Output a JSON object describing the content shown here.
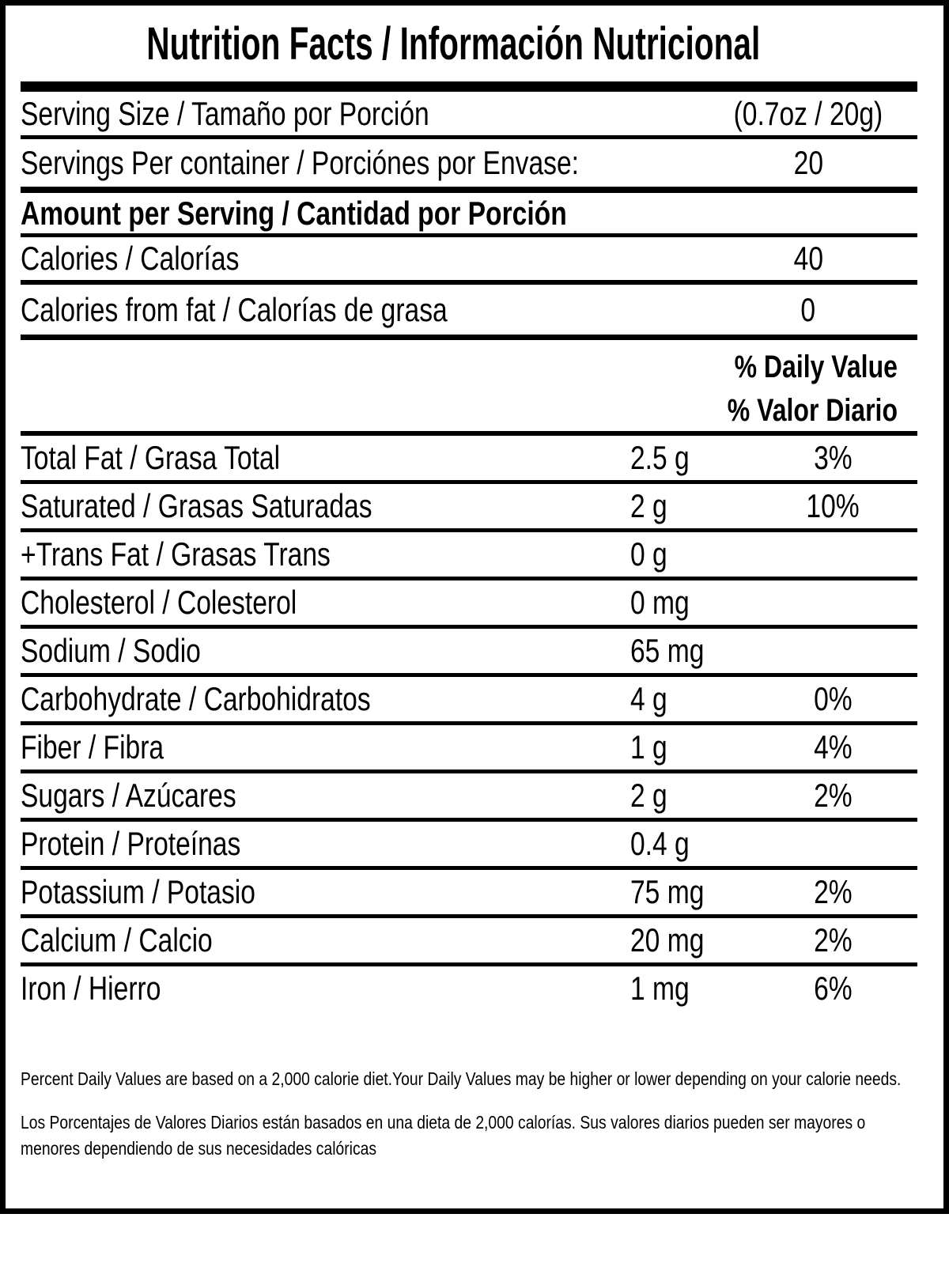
{
  "label": {
    "title": "Nutrition Facts / Información Nutricional",
    "serving_rows": [
      {
        "label": "Serving Size / Tamaño por Porción",
        "value": "(0.7oz / 20g)"
      },
      {
        "label": "Servings Per container / Porciónes por Envase:",
        "value": "20"
      }
    ],
    "amount_heading": "Amount per Serving / Cantidad por Porción",
    "calorie_rows": [
      {
        "label": "Calories / Calorías",
        "value": "40"
      },
      {
        "label": "Calories from fat / Calorías de grasa",
        "value": "0"
      }
    ],
    "daily_value_header": {
      "line1": "% Daily Value",
      "line2": "% Valor Diario"
    },
    "nutrient_rows": [
      {
        "label": "Total Fat / Grasa Total",
        "amount": "2.5 g",
        "daily_value": "3%"
      },
      {
        "label": "Saturated / Grasas Saturadas",
        "amount": "2 g",
        "daily_value": "10%"
      },
      {
        "label": "+Trans Fat / Grasas Trans",
        "amount": "0 g",
        "daily_value": ""
      },
      {
        "label": "Cholesterol / Colesterol",
        "amount": "0 mg",
        "daily_value": ""
      },
      {
        "label": "Sodium / Sodio",
        "amount": "65 mg",
        "daily_value": ""
      },
      {
        "label": "Carbohydrate / Carbohidratos",
        "amount": "4 g",
        "daily_value": "0%"
      },
      {
        "label": "Fiber / Fibra",
        "amount": "1 g",
        "daily_value": "4%"
      },
      {
        "label": "Sugars / Azúcares",
        "amount": "2 g",
        "daily_value": "2%"
      },
      {
        "label": "Protein / Proteínas",
        "amount": "0.4 g",
        "daily_value": ""
      },
      {
        "label": "Potassium / Potasio",
        "amount": "75 mg",
        "daily_value": "2%"
      },
      {
        "label": "Calcium / Calcio",
        "amount": "20 mg",
        "daily_value": "2%"
      },
      {
        "label": "Iron / Hierro",
        "amount": "1 mg",
        "daily_value": "6%"
      }
    ],
    "footnotes": {
      "english": "Percent Daily Values are based on a 2,000 calorie diet.Your Daily Values may be higher or lower depending on your calorie needs.",
      "spanish": "Los Porcentajes de Valores Diarios están basados en una dieta de 2,000 calorías. Sus valores diarios pueden ser mayores o menores dependiendo de sus necesidades calóricas"
    },
    "colors": {
      "text": "#000000",
      "background": "#ffffff"
    }
  }
}
